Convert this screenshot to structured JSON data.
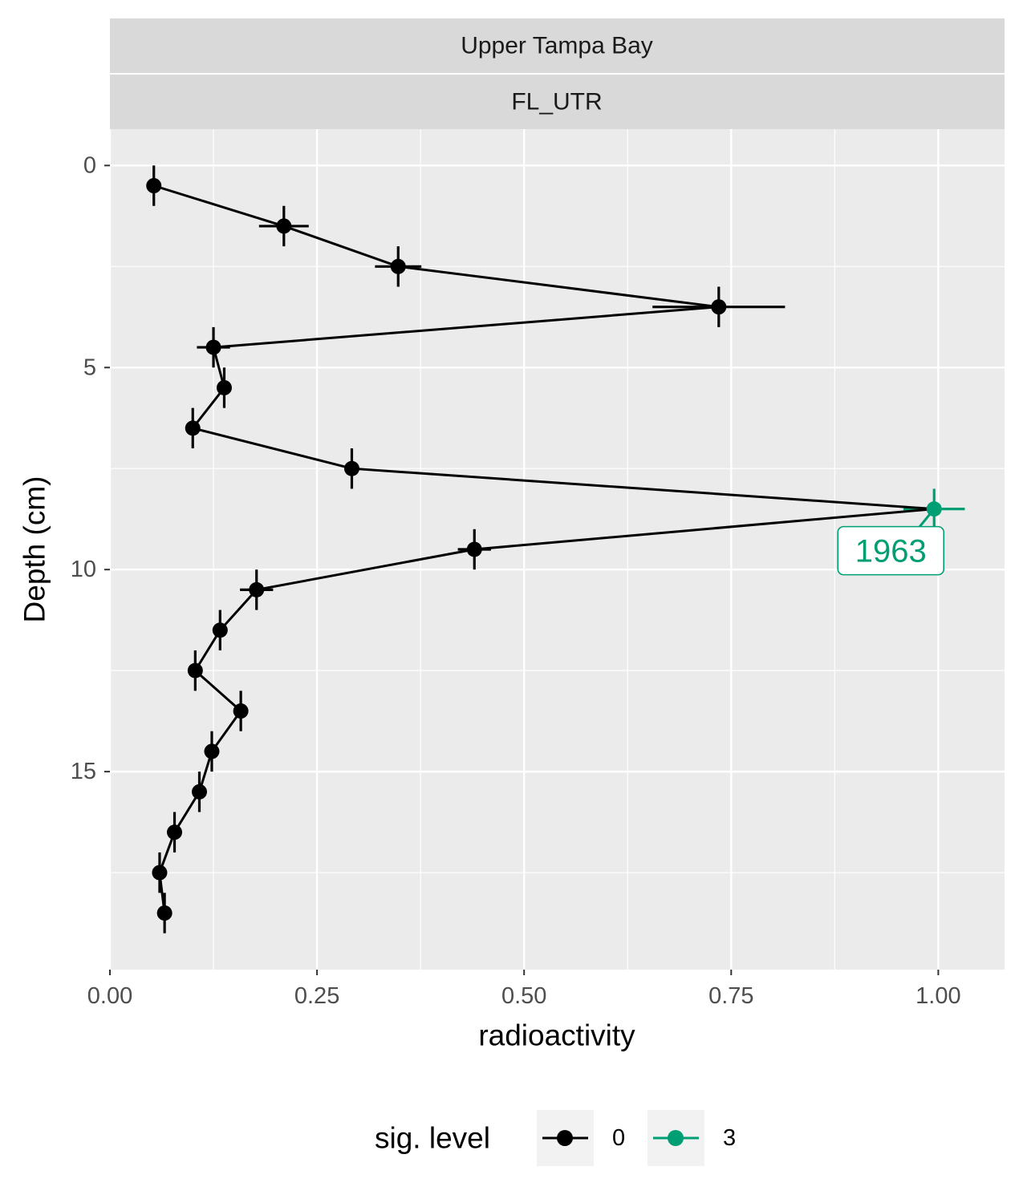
{
  "chart_data": {
    "type": "line",
    "facet_labels": [
      "Upper Tampa Bay",
      "FL_UTR"
    ],
    "xlabel": "radioactivity",
    "ylabel": "Depth (cm)",
    "xlim": [
      0,
      1.08
    ],
    "ylim": [
      -0.9,
      19.9
    ],
    "y_reversed": true,
    "x_ticks": [
      0,
      0.25,
      0.5,
      0.75,
      1.0
    ],
    "x_tick_labels": [
      "0.00",
      "0.25",
      "0.50",
      "0.75",
      "1.00"
    ],
    "y_ticks": [
      0,
      5,
      10,
      15
    ],
    "y_tick_labels": [
      "0",
      "5",
      "10",
      "15"
    ],
    "grid": true,
    "legend": {
      "title": "sig. level",
      "position": "bottom",
      "entries": [
        {
          "label": "0",
          "color": "#000000"
        },
        {
          "label": "3",
          "color": "#009E73"
        }
      ]
    },
    "points": [
      {
        "depth": 0.5,
        "x": 0.053,
        "xerr": 0.0,
        "yerr": 0.5,
        "sig": "0"
      },
      {
        "depth": 1.5,
        "x": 0.21,
        "xerr": 0.03,
        "yerr": 0.5,
        "sig": "0"
      },
      {
        "depth": 2.5,
        "x": 0.348,
        "xerr": 0.028,
        "yerr": 0.5,
        "sig": "0"
      },
      {
        "depth": 3.5,
        "x": 0.735,
        "xerr": 0.08,
        "yerr": 0.5,
        "sig": "0"
      },
      {
        "depth": 4.5,
        "x": 0.125,
        "xerr": 0.02,
        "yerr": 0.5,
        "sig": "0"
      },
      {
        "depth": 5.5,
        "x": 0.138,
        "xerr": 0.005,
        "yerr": 0.5,
        "sig": "0"
      },
      {
        "depth": 6.5,
        "x": 0.1,
        "xerr": 0.005,
        "yerr": 0.5,
        "sig": "0"
      },
      {
        "depth": 7.5,
        "x": 0.292,
        "xerr": 0.006,
        "yerr": 0.5,
        "sig": "0"
      },
      {
        "depth": 8.5,
        "x": 0.995,
        "xerr": 0.037,
        "yerr": 0.5,
        "sig": "3"
      },
      {
        "depth": 9.5,
        "x": 0.44,
        "xerr": 0.02,
        "yerr": 0.5,
        "sig": "0"
      },
      {
        "depth": 10.5,
        "x": 0.177,
        "xerr": 0.02,
        "yerr": 0.5,
        "sig": "0"
      },
      {
        "depth": 11.5,
        "x": 0.133,
        "xerr": 0.005,
        "yerr": 0.5,
        "sig": "0"
      },
      {
        "depth": 12.5,
        "x": 0.103,
        "xerr": 0.005,
        "yerr": 0.5,
        "sig": "0"
      },
      {
        "depth": 13.5,
        "x": 0.158,
        "xerr": 0.005,
        "yerr": 0.5,
        "sig": "0"
      },
      {
        "depth": 14.5,
        "x": 0.123,
        "xerr": 0.005,
        "yerr": 0.5,
        "sig": "0"
      },
      {
        "depth": 15.5,
        "x": 0.108,
        "xerr": 0.005,
        "yerr": 0.5,
        "sig": "0"
      },
      {
        "depth": 16.5,
        "x": 0.078,
        "xerr": 0.004,
        "yerr": 0.5,
        "sig": "0"
      },
      {
        "depth": 17.5,
        "x": 0.06,
        "xerr": 0.003,
        "yerr": 0.5,
        "sig": "0"
      },
      {
        "depth": 18.5,
        "x": 0.066,
        "xerr": 0.003,
        "yerr": 0.5,
        "sig": "0"
      }
    ],
    "annotations": [
      {
        "text": "1963",
        "x": 0.995,
        "depth": 8.5,
        "color": "#009E73"
      }
    ],
    "colors": {
      "panel_bg": "#EBEBEB",
      "strip_bg": "#D9D9D9",
      "grid": "#FFFFFF"
    }
  }
}
